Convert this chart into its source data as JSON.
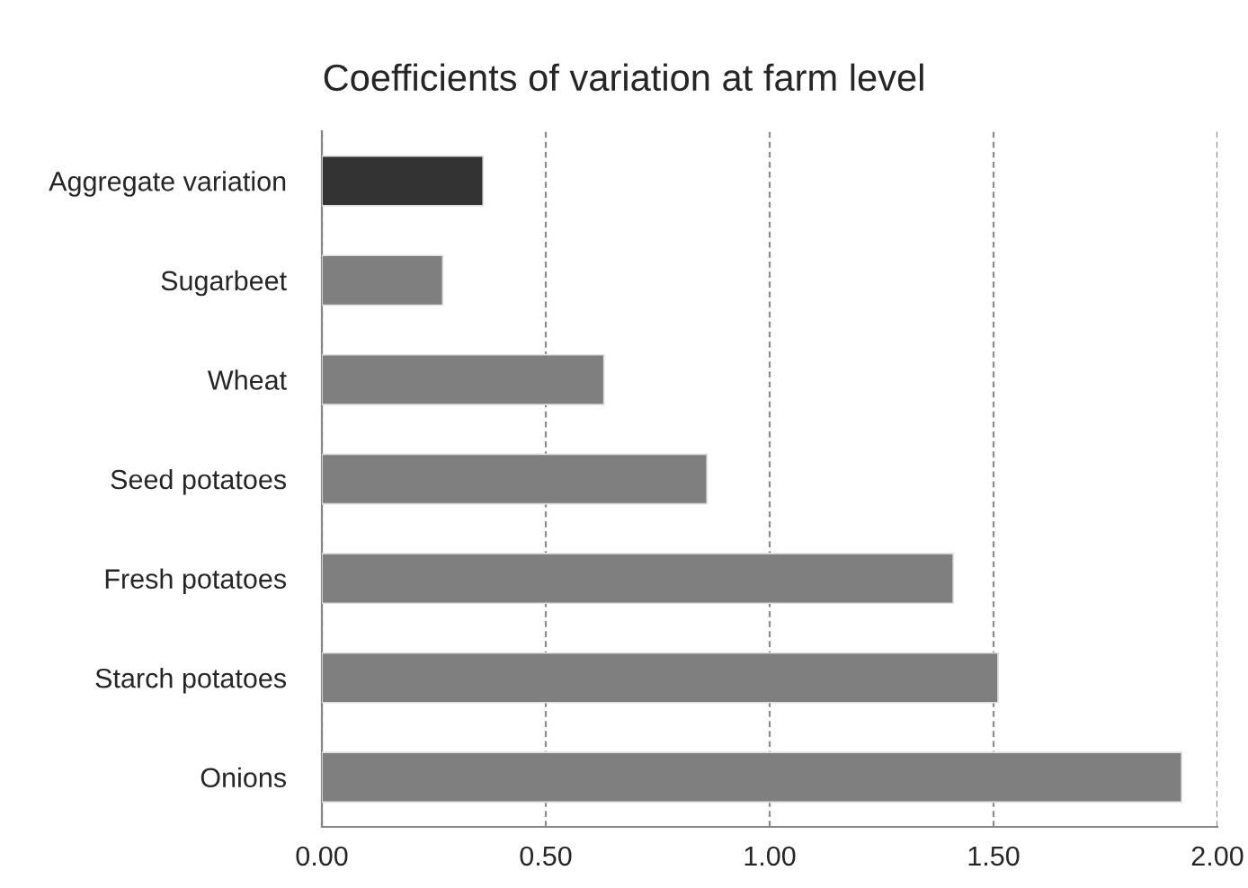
{
  "chart_data": {
    "type": "bar",
    "orientation": "horizontal",
    "title": "Coefficients of variation at farm level",
    "categories": [
      "Aggregate variation",
      "Sugarbeet",
      "Wheat",
      "Seed potatoes",
      "Fresh potatoes",
      "Starch potatoes",
      "Onions"
    ],
    "values": [
      0.36,
      0.27,
      0.63,
      0.86,
      1.41,
      1.51,
      1.92
    ],
    "colors": [
      "#333333",
      "#7f7f7f",
      "#7f7f7f",
      "#7f7f7f",
      "#7f7f7f",
      "#7f7f7f",
      "#7f7f7f"
    ],
    "xlim": [
      0,
      2
    ],
    "xticks": [
      {
        "value": 0,
        "label": "0.00"
      },
      {
        "value": 0.5,
        "label": "0.50"
      },
      {
        "value": 1,
        "label": "1.00"
      },
      {
        "value": 1.5,
        "label": "1.50"
      },
      {
        "value": 2,
        "label": "2.00"
      }
    ],
    "grid": "x"
  }
}
